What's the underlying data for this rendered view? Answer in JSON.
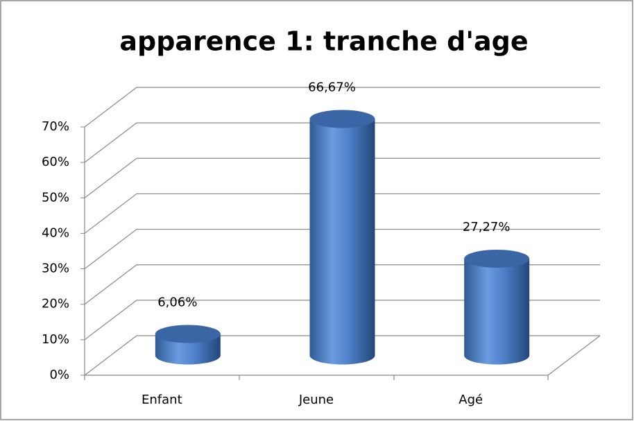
{
  "chart_data": {
    "type": "bar3d",
    "title": "apparence 1: tranche d'age",
    "categories": [
      "Enfant",
      "Jeune",
      "Agé"
    ],
    "values": [
      6.06,
      66.67,
      27.27
    ],
    "value_labels": [
      "6,06%",
      "66,67%",
      "27,27%"
    ],
    "color": "#4f81bd",
    "ylim": [
      0,
      70
    ],
    "yticks": [
      {
        "value": 0,
        "label": "0%"
      },
      {
        "value": 10,
        "label": "10%"
      },
      {
        "value": 20,
        "label": "20%"
      },
      {
        "value": 30,
        "label": "30%"
      },
      {
        "value": 40,
        "label": "40%"
      },
      {
        "value": 50,
        "label": "50%"
      },
      {
        "value": 60,
        "label": "60%"
      },
      {
        "value": 70,
        "label": "70%"
      }
    ],
    "grid": true
  }
}
